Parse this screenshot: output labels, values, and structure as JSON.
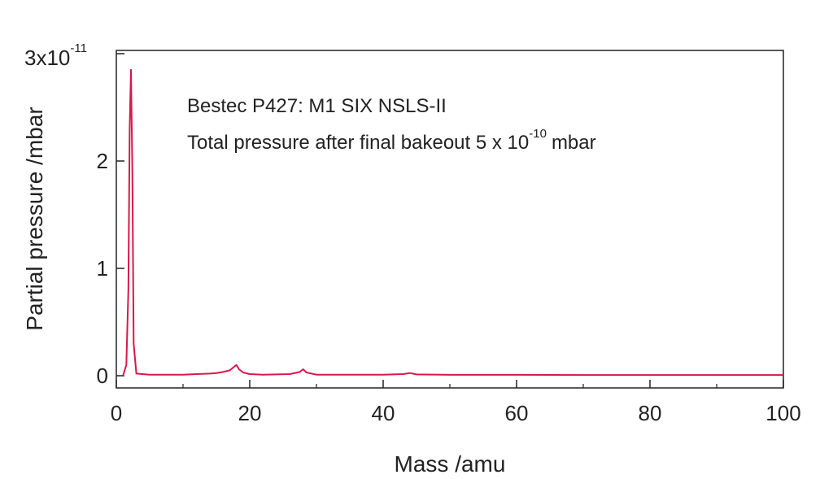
{
  "chart_data": {
    "type": "line",
    "xlabel": "Mass /amu",
    "ylabel": "Partial pressure /mbar",
    "xlim": [
      0,
      100
    ],
    "ylim": [
      0,
      3
    ],
    "y_multiplier_base": "3x10",
    "y_multiplier_exp": "-11",
    "x_ticks": [
      0,
      20,
      40,
      60,
      80,
      100
    ],
    "y_ticks": [
      0,
      1,
      2
    ],
    "grid": false,
    "annotations": {
      "line1": "Bestec P427: M1 SIX NSLS-II",
      "line2_pre": "Total pressure after final bakeout 5 x 10",
      "line2_exp": "-10",
      "line2_post": "mbar"
    },
    "series": [
      {
        "color": "#d8184a",
        "x": [
          1.0,
          1.5,
          1.8,
          2.0,
          2.2,
          2.4,
          2.6,
          3.0,
          5,
          10,
          12,
          14,
          15,
          16,
          17,
          17.6,
          18,
          18.4,
          19,
          20,
          22,
          26,
          27.5,
          28,
          28.5,
          30,
          36,
          40,
          43,
          44,
          45,
          50,
          60,
          70,
          80,
          90,
          100
        ],
        "y": [
          0.0,
          0.1,
          0.8,
          2.3,
          2.85,
          1.9,
          0.3,
          0.02,
          0.01,
          0.01,
          0.015,
          0.02,
          0.025,
          0.035,
          0.05,
          0.08,
          0.1,
          0.06,
          0.03,
          0.015,
          0.01,
          0.015,
          0.035,
          0.06,
          0.03,
          0.01,
          0.01,
          0.01,
          0.015,
          0.025,
          0.012,
          0.008,
          0.008,
          0.007,
          0.007,
          0.007,
          0.007
        ]
      }
    ]
  }
}
